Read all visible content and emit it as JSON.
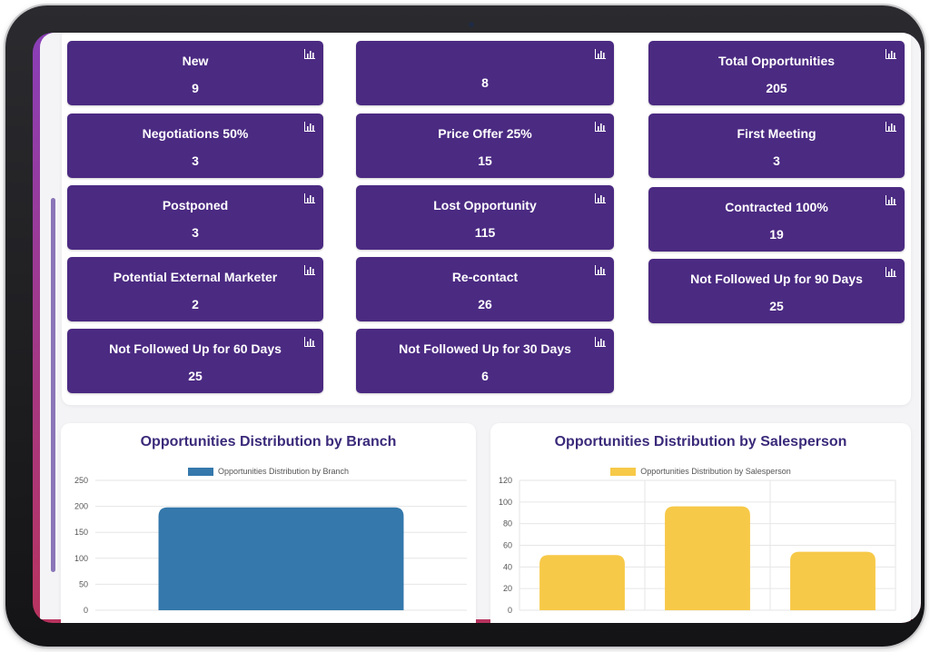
{
  "cards": [
    {
      "label": "New",
      "value": "9"
    },
    {
      "label": "",
      "value": "8"
    },
    {
      "label": "Total Opportunities",
      "value": "205"
    },
    {
      "label": "Negotiations 50%",
      "value": "3"
    },
    {
      "label": "Price Offer 25%",
      "value": "15"
    },
    {
      "label": "First Meeting",
      "value": "3"
    },
    {
      "label": "Postponed",
      "value": "3"
    },
    {
      "label": "Lost Opportunity",
      "value": "115"
    },
    {
      "label": "Contracted 100%",
      "value": "19"
    },
    {
      "label": "Potential External Marketer",
      "value": "2"
    },
    {
      "label": "Re-contact",
      "value": "26"
    },
    {
      "label": "Not Followed Up for 90 Days",
      "value": "25"
    },
    {
      "label": "Not Followed Up for 60 Days",
      "value": "25"
    },
    {
      "label": "Not Followed Up for 30 Days",
      "value": "6"
    }
  ],
  "card_icon": "bar-chart-icon",
  "colors": {
    "card_bg": "#4b2a82",
    "title": "#3b2a7a",
    "branch_bar": "#3478ac",
    "salesperson_bar": "#f7c948"
  },
  "chart_data": [
    {
      "type": "bar",
      "title": "Opportunities Distribution by Branch",
      "series": [
        {
          "name": "Opportunities Distribution by Branch",
          "values": [
            198
          ]
        }
      ],
      "categories": [
        ""
      ],
      "ylim": [
        0,
        250
      ],
      "yticks": [
        "0",
        "50",
        "100",
        "150",
        "200",
        "250"
      ],
      "grid": true,
      "legend": "top"
    },
    {
      "type": "bar",
      "title": "Opportunities Distribution by Salesperson",
      "series": [
        {
          "name": "Opportunities Distribution by Salesperson",
          "values": [
            51,
            96,
            54
          ]
        }
      ],
      "categories": [
        "",
        "",
        ""
      ],
      "ylim": [
        0,
        120
      ],
      "yticks": [
        "0",
        "20",
        "40",
        "60",
        "80",
        "100",
        "120"
      ],
      "grid": true,
      "legend": "top"
    }
  ]
}
